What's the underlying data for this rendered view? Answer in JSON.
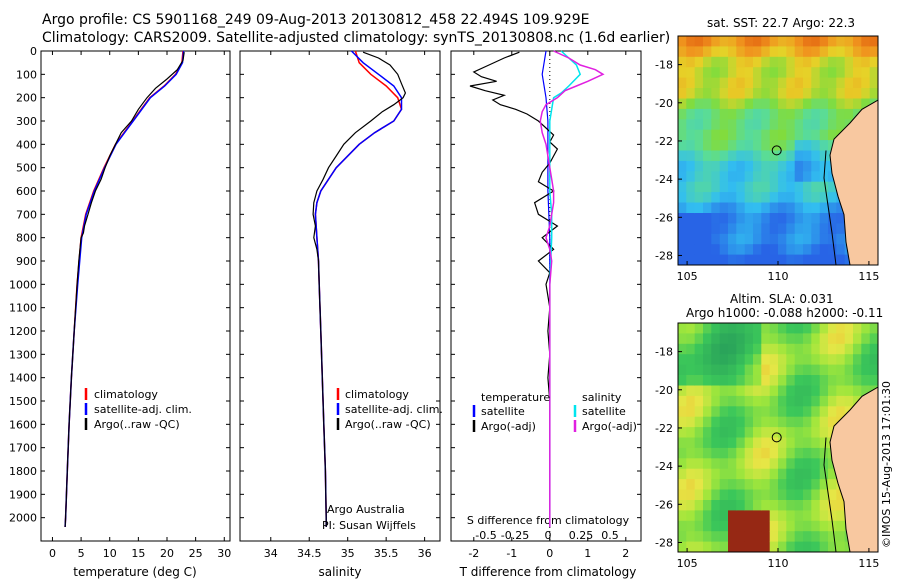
{
  "header": {
    "line1": "Argo profile: CS 5901168_249 09-Aug-2013 20130812_458 22.494S 109.929E",
    "line2": "Climatology: CARS2009. Satellite-adjusted climatology: synTS_20130808.nc (1.6d earlier)"
  },
  "colors": {
    "climatology": "#ff0000",
    "satellite": "#0000ff",
    "argo": "#000000",
    "sal_satellite": "#00e5ee",
    "sal_argo": "#e020e0"
  },
  "chart_data": [
    {
      "type": "line",
      "id": "temperature",
      "xlabel": "temperature (deg C)",
      "xlim": [
        -2,
        31
      ],
      "ylim": [
        2100,
        0
      ],
      "xticks": [
        0,
        5,
        10,
        15,
        20,
        25,
        30
      ],
      "yticks": [
        0,
        100,
        200,
        300,
        400,
        500,
        600,
        700,
        800,
        900,
        1000,
        1100,
        1200,
        1300,
        1400,
        1500,
        1600,
        1700,
        1800,
        1900,
        2000
      ],
      "legend": [
        "climatology",
        "satellite-adj. clim.",
        "Argo(..raw -QC)"
      ],
      "series": [
        {
          "name": "climatology",
          "color": "#ff0000",
          "width": 1.5,
          "depth": [
            0,
            50,
            100,
            150,
            200,
            300,
            400,
            500,
            600,
            700,
            800,
            1000,
            1200,
            1400,
            1600,
            1800,
            2000,
            2040
          ],
          "values": [
            22.8,
            22.6,
            21.5,
            19.5,
            17.0,
            14.0,
            11.0,
            9.0,
            7.2,
            5.8,
            5.0,
            4.3,
            3.8,
            3.3,
            2.9,
            2.6,
            2.3,
            2.2
          ]
        },
        {
          "name": "satellite-adj. clim.",
          "color": "#0000ff",
          "width": 1.5,
          "depth": [
            0,
            50,
            100,
            150,
            200,
            300,
            400,
            500,
            600,
            700,
            800,
            1000,
            1200,
            1400,
            1600,
            1800,
            2000,
            2040
          ],
          "values": [
            22.9,
            22.7,
            21.6,
            19.6,
            17.1,
            14.1,
            11.1,
            9.1,
            7.3,
            5.9,
            5.1,
            4.4,
            3.8,
            3.3,
            2.9,
            2.6,
            2.3,
            2.2
          ]
        },
        {
          "name": "Argo(..raw -QC)",
          "color": "#000000",
          "width": 1.2,
          "depth": [
            5,
            40,
            80,
            120,
            160,
            200,
            250,
            300,
            350,
            400,
            450,
            500,
            550,
            600,
            650,
            700,
            750,
            780,
            800,
            900,
            1000,
            1200,
            1400,
            1600,
            1800,
            2000,
            2040
          ],
          "values": [
            23.0,
            22.8,
            21.8,
            20.0,
            18.0,
            16.5,
            15.0,
            13.8,
            12.0,
            11.0,
            10.0,
            9.2,
            8.5,
            7.5,
            6.8,
            6.2,
            5.6,
            5.4,
            5.0,
            4.6,
            4.3,
            3.8,
            3.3,
            2.9,
            2.6,
            2.3,
            2.2
          ]
        }
      ]
    },
    {
      "type": "line",
      "id": "salinity",
      "xlabel": "salinity",
      "xlim": [
        33.6,
        36.2
      ],
      "ylim": [
        2100,
        0
      ],
      "xticks": [
        34,
        34.5,
        35,
        35.5,
        36
      ],
      "legend": [
        "climatology",
        "satellite-adj. clim.",
        "Argo(..raw -QC)"
      ],
      "annotation": [
        "Argo Australia",
        "PI: Susan Wijffels"
      ],
      "series": [
        {
          "name": "climatology",
          "color": "#ff0000",
          "width": 1.5,
          "depth": [
            0,
            50,
            100,
            150,
            200,
            250,
            300,
            350,
            400,
            500,
            600,
            650,
            700,
            800,
            900,
            1000,
            1200,
            1400,
            1600,
            1800,
            2000,
            2040
          ],
          "values": [
            35.1,
            35.15,
            35.3,
            35.5,
            35.65,
            35.7,
            35.6,
            35.35,
            35.15,
            34.85,
            34.65,
            34.6,
            34.58,
            34.6,
            34.62,
            34.63,
            34.65,
            34.67,
            34.69,
            34.71,
            34.72,
            34.72
          ]
        },
        {
          "name": "satellite-adj. clim.",
          "color": "#0000ff",
          "width": 1.5,
          "depth": [
            0,
            50,
            100,
            150,
            200,
            250,
            300,
            350,
            400,
            500,
            600,
            650,
            700,
            800,
            900,
            1000,
            1200,
            1400,
            1600,
            1800,
            2000,
            2040
          ],
          "values": [
            35.05,
            35.2,
            35.4,
            35.6,
            35.7,
            35.7,
            35.6,
            35.35,
            35.15,
            34.85,
            34.65,
            34.6,
            34.58,
            34.6,
            34.62,
            34.63,
            34.65,
            34.67,
            34.69,
            34.71,
            34.72,
            34.72
          ]
        },
        {
          "name": "Argo(..raw -QC)",
          "color": "#000000",
          "width": 1.2,
          "depth": [
            5,
            30,
            60,
            100,
            140,
            180,
            200,
            230,
            260,
            300,
            350,
            400,
            450,
            500,
            550,
            600,
            650,
            700,
            750,
            800,
            850,
            900,
            1000,
            1200,
            1400,
            1600,
            1800,
            2000,
            2040
          ],
          "values": [
            35.2,
            35.4,
            35.55,
            35.65,
            35.7,
            35.75,
            35.72,
            35.6,
            35.45,
            35.3,
            35.1,
            34.95,
            34.85,
            34.75,
            34.68,
            34.6,
            34.56,
            34.55,
            34.58,
            34.56,
            34.6,
            34.62,
            34.63,
            34.65,
            34.67,
            34.69,
            34.71,
            34.72,
            34.72
          ]
        }
      ]
    },
    {
      "type": "line",
      "id": "difference",
      "xlabel": "T difference from climatology",
      "xlabel_top": "S difference from climatology",
      "xlim": [
        -2.6,
        2.4
      ],
      "ylim": [
        2100,
        0
      ],
      "xticks_t": [
        -2,
        -1,
        0,
        1,
        2
      ],
      "xticks_s": [
        "-0.5",
        "-0.25",
        "0",
        "0.25",
        "0.5"
      ],
      "legend_temperature": {
        "title": "temperature",
        "items": [
          "satellite",
          "Argo(-adj)"
        ]
      },
      "legend_salinity": {
        "title": "salinity",
        "items": [
          "satellite",
          "Argo(-adj)"
        ]
      },
      "series": [
        {
          "name": "T satellite",
          "color": "#0000ff",
          "width": 1.2,
          "depth": [
            0,
            50,
            100,
            150,
            200,
            300,
            400,
            500,
            600,
            800,
            1000,
            1500,
            2000,
            2040
          ],
          "values": [
            -0.1,
            -0.15,
            -0.2,
            -0.15,
            -0.1,
            -0.05,
            -0.05,
            -0.05,
            -0.05,
            0,
            0,
            0,
            0,
            0
          ]
        },
        {
          "name": "T Argo(-adj)",
          "color": "#000000",
          "width": 1.2,
          "depth": [
            5,
            30,
            60,
            90,
            110,
            130,
            150,
            170,
            190,
            210,
            230,
            250,
            270,
            300,
            330,
            360,
            390,
            420,
            450,
            480,
            520,
            560,
            600,
            650,
            700,
            750,
            800,
            850,
            900,
            950,
            1000,
            1100,
            1200,
            1300,
            1400,
            1500,
            1600,
            1800,
            2000,
            2040
          ],
          "values": [
            -0.8,
            -1.2,
            -1.6,
            -2.0,
            -1.8,
            -1.4,
            -2.1,
            -1.7,
            -1.2,
            -1.5,
            -1.3,
            -0.9,
            -0.6,
            -0.3,
            -0.1,
            0.1,
            0.0,
            0.2,
            0.1,
            0.0,
            -0.2,
            -0.3,
            0.1,
            -0.4,
            -0.3,
            0.2,
            -0.2,
            0.1,
            -0.3,
            0.0,
            -0.1,
            0.0,
            -0.05,
            0.0,
            -0.05,
            0.0,
            0.0,
            0.0,
            0.0,
            0.0
          ]
        },
        {
          "name": "S satellite",
          "color": "#00e5ee",
          "width": 1.5,
          "depth": [
            0,
            30,
            60,
            100,
            150,
            180,
            200,
            250,
            300,
            400,
            500,
            600,
            700,
            800,
            1000,
            1500,
            2000,
            2040
          ],
          "values": [
            0.3,
            0.5,
            0.7,
            0.8,
            0.5,
            0.3,
            0.1,
            0.05,
            0.0,
            0.0,
            0.0,
            0.0,
            0.05,
            0.05,
            0.0,
            0.0,
            0.0,
            0.0
          ]
        },
        {
          "name": "S Argo(-adj)",
          "color": "#e020e0",
          "width": 1.5,
          "depth": [
            0,
            30,
            60,
            80,
            100,
            130,
            150,
            170,
            200,
            230,
            260,
            300,
            350,
            400,
            450,
            500,
            550,
            600,
            650,
            700,
            750,
            800,
            850,
            900,
            1000,
            1100,
            1200,
            1400,
            1600,
            1800,
            2000,
            2040
          ],
          "values": [
            0.1,
            0.5,
            0.8,
            1.2,
            1.4,
            1.0,
            0.7,
            0.4,
            0.2,
            -0.1,
            -0.2,
            -0.25,
            -0.2,
            -0.1,
            -0.05,
            0.0,
            0.05,
            0.1,
            0.1,
            0.05,
            0.0,
            -0.1,
            0.0,
            0.05,
            0.0,
            0.0,
            0.0,
            0.0,
            0.0,
            0.0,
            0.0,
            0.0
          ]
        }
      ]
    },
    {
      "type": "heatmap",
      "id": "sst_map",
      "title": "sat. SST: 22.7  Argo: 22.3",
      "xticks": [
        105,
        110,
        115
      ],
      "yticks": [
        -18,
        -20,
        -22,
        -24,
        -26,
        -28
      ]
    },
    {
      "type": "heatmap",
      "id": "sla_map",
      "title_line1": "Altim. SLA: 0.031",
      "title_line2": "Argo h1000: -0.088 h2000: -0.11",
      "xticks": [
        105,
        110,
        115
      ],
      "yticks": [
        -18,
        -20,
        -22,
        -24,
        -26,
        -28
      ]
    }
  ],
  "footer": {
    "stamp": "©IMOS 15-Aug-2013 17:01:30"
  }
}
